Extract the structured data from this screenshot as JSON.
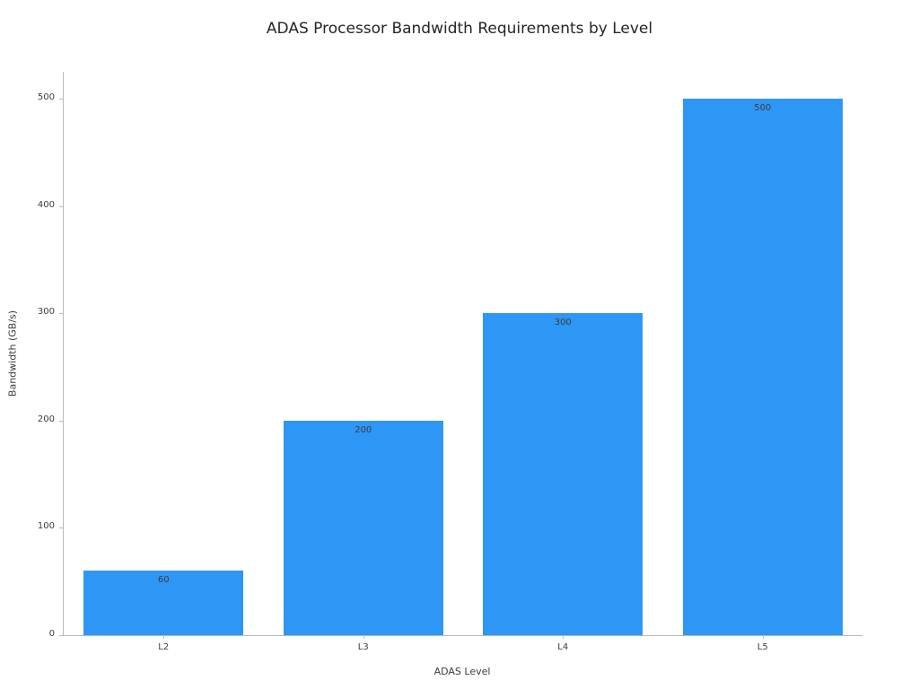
{
  "chart_data": {
    "type": "bar",
    "categories": [
      "L2",
      "L3",
      "L4",
      "L5"
    ],
    "values": [
      60,
      200,
      300,
      500
    ],
    "title": "ADAS Processor Bandwidth Requirements by Level",
    "xlabel": "ADAS Level",
    "ylabel": "Bandwidth (GB/s)",
    "ylim": [
      0,
      525
    ],
    "yticks": [
      0,
      100,
      200,
      300,
      400,
      500
    ],
    "grid": false,
    "legend": null,
    "bar_color": "#2E96F5",
    "bar_width_fraction": 0.8,
    "value_labels_inside_top": true
  },
  "colors": {
    "background": "#ffffff",
    "spine": "#b9b9b9",
    "tick_label": "#3d3d3d",
    "title": "#262626",
    "value_label": "#3d3d3d"
  }
}
